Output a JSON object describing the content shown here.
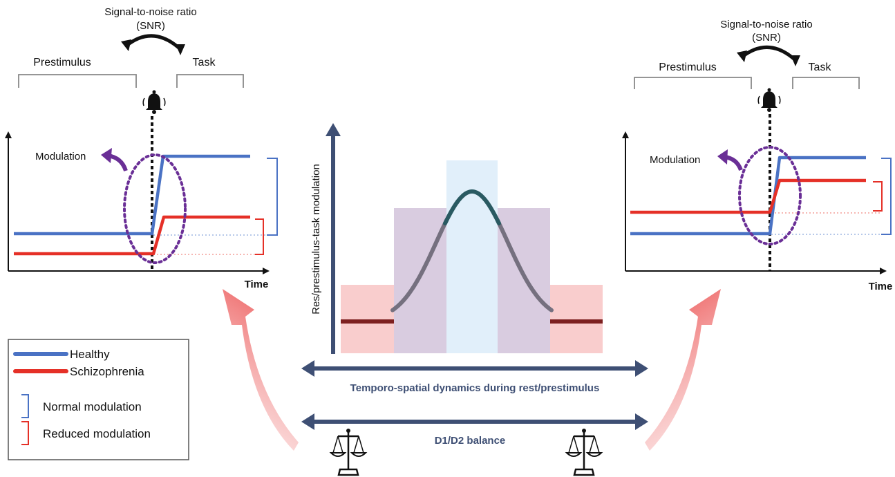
{
  "left_panel": {
    "snr_line1": "Signal-to-noise ratio",
    "snr_line2": "(SNR)",
    "prestimulus_label": "Prestimulus",
    "task_label": "Task",
    "modulation_label": "Modulation",
    "time_label": "Time"
  },
  "right_panel": {
    "snr_line1": "Signal-to-noise ratio",
    "snr_line2": "(SNR)",
    "prestimulus_label": "Prestimulus",
    "task_label": "Task",
    "modulation_label": "Modulation",
    "time_label": "Time"
  },
  "center_panel": {
    "y_axis_label": "Res/prestimulus-task modulation",
    "dynamics_label": "Temporo-spatial dynamics during rest/prestimulus",
    "balance_label": "D1/D2 balance"
  },
  "legend": {
    "healthy": "Healthy",
    "schizophrenia": "Schizophrenia",
    "normal_modulation": "Normal modulation",
    "reduced_modulation": "Reduced modulation"
  },
  "colors": {
    "healthy": "#4a72c4",
    "schizophrenia": "#e53027",
    "modulation_oval": "#6a2f96",
    "axis_arrows": "#3e4f74",
    "big_arrows": "#f08080"
  }
}
